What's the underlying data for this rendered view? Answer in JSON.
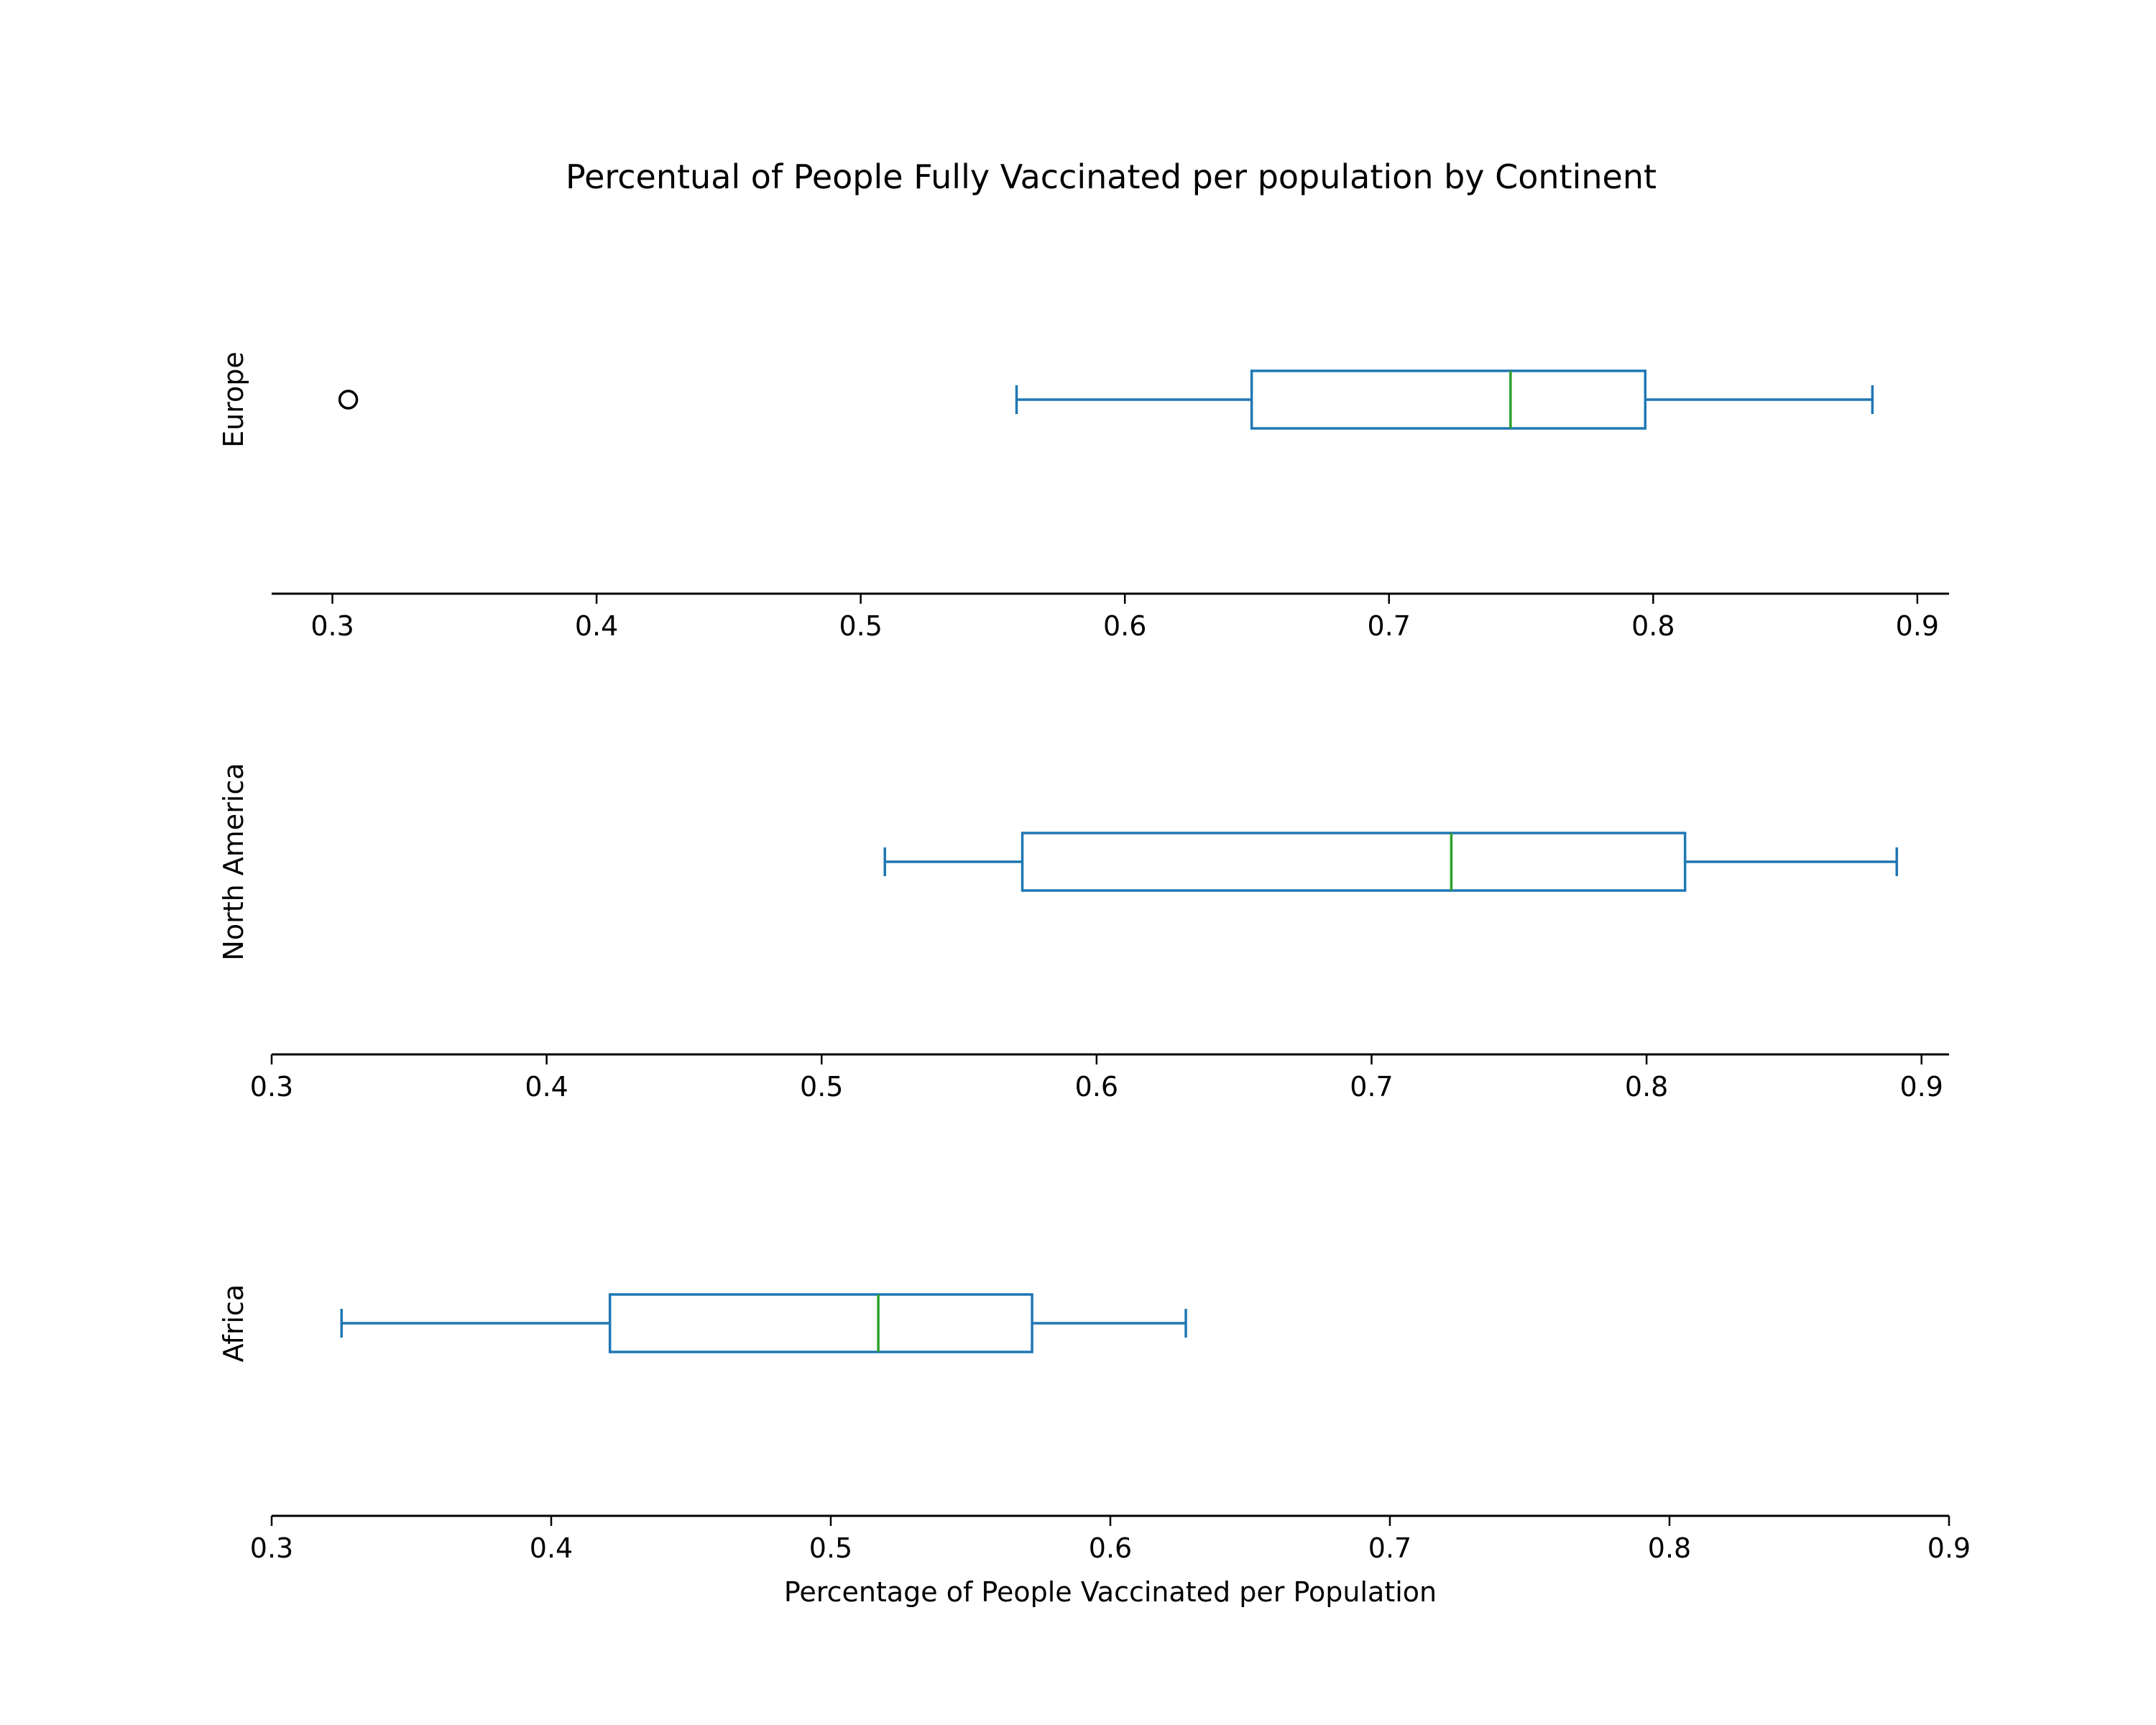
{
  "chart_data": {
    "type": "box",
    "title": "Percentual of People Fully Vaccinated per population by Continent",
    "xlabel": "Percentage of People Vaccinated per Population",
    "colors": {
      "box": "#1f77b4",
      "median": "#2ca02c",
      "outlier": "#000000",
      "axis": "#000000"
    },
    "grid": false,
    "panels": [
      {
        "name": "Europe",
        "ylabel": "Europe",
        "xlim": [
          0.277,
          0.912
        ],
        "tick_values": [
          0.3,
          0.4,
          0.5,
          0.6,
          0.7,
          0.8,
          0.9
        ],
        "tick_labels": [
          "0.3",
          "0.4",
          "0.5",
          "0.6",
          "0.7",
          "0.8",
          "0.9"
        ],
        "whisker_low": 0.559,
        "q1": 0.648,
        "median": 0.746,
        "q3": 0.797,
        "whisker_high": 0.883,
        "outliers": [
          0.306
        ]
      },
      {
        "name": "North America",
        "ylabel": "North America",
        "xlim": [
          0.3,
          0.91
        ],
        "tick_values": [
          0.3,
          0.4,
          0.5,
          0.6,
          0.7,
          0.8,
          0.9
        ],
        "tick_labels": [
          "0.3",
          "0.4",
          "0.5",
          "0.6",
          "0.7",
          "0.8",
          "0.9"
        ],
        "whisker_low": 0.523,
        "q1": 0.573,
        "median": 0.729,
        "q3": 0.814,
        "whisker_high": 0.891,
        "outliers": []
      },
      {
        "name": "Africa",
        "ylabel": "Africa",
        "xlim": [
          0.3,
          0.9
        ],
        "tick_values": [
          0.3,
          0.4,
          0.5,
          0.6,
          0.7,
          0.8,
          0.9
        ],
        "tick_labels": [
          "0.3",
          "0.4",
          "0.5",
          "0.6",
          "0.7",
          "0.8",
          "0.9"
        ],
        "whisker_low": 0.325,
        "q1": 0.421,
        "median": 0.517,
        "q3": 0.572,
        "whisker_high": 0.627,
        "outliers": []
      }
    ]
  }
}
